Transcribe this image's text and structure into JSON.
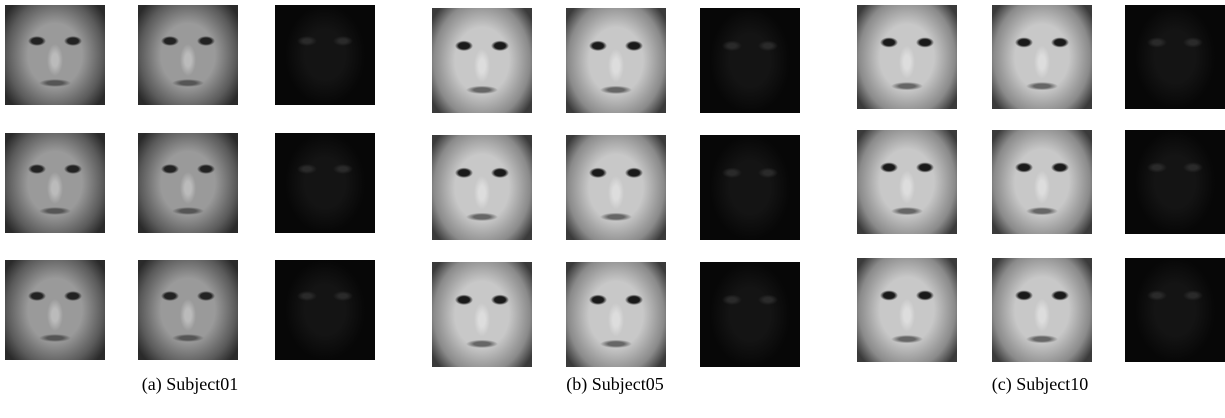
{
  "subfigures": [
    {
      "caption": "(a) Subject01"
    },
    {
      "caption": "(b) Subject05"
    },
    {
      "caption": "(c) Subject10"
    }
  ]
}
